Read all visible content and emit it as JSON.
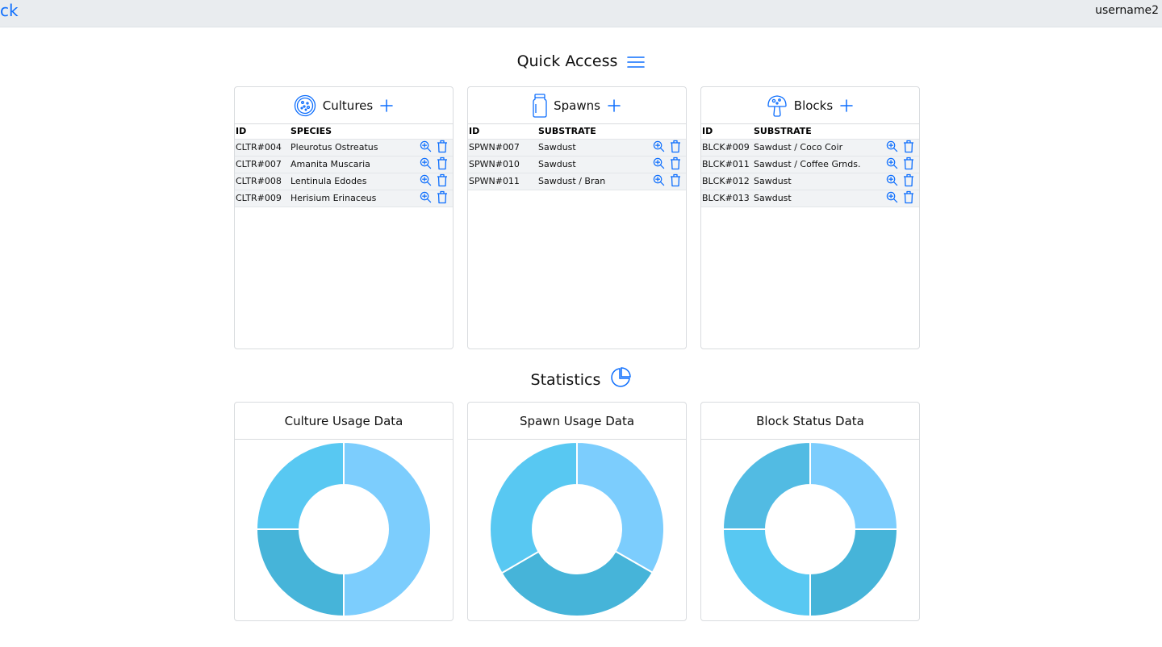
{
  "header": {
    "brand": "ck",
    "username": "username2"
  },
  "quick_access": {
    "title": "Quick Access",
    "icon": "hamburger-icon",
    "cards": [
      {
        "title": "Cultures",
        "icon": "petri-dish-icon",
        "columns": [
          "ID",
          "SPECIES"
        ],
        "rows": [
          [
            "CLTR#004",
            "Pleurotus Ostreatus"
          ],
          [
            "CLTR#007",
            "Amanita Muscaria"
          ],
          [
            "CLTR#008",
            "Lentinula Edodes"
          ],
          [
            "CLTR#009",
            "Herisium Erinaceus"
          ]
        ]
      },
      {
        "title": "Spawns",
        "icon": "jar-icon",
        "columns": [
          "ID",
          "SUBSTRATE"
        ],
        "rows": [
          [
            "SPWN#007",
            "Sawdust"
          ],
          [
            "SPWN#010",
            "Sawdust"
          ],
          [
            "SPWN#011",
            "Sawdust / Bran"
          ]
        ]
      },
      {
        "title": "Blocks",
        "icon": "mushroom-icon",
        "columns": [
          "ID",
          "SUBSTRATE"
        ],
        "rows": [
          [
            "BLCK#009",
            "Sawdust / Coco Coir"
          ],
          [
            "BLCK#011",
            "Sawdust / Coffee Grnds."
          ],
          [
            "BLCK#012",
            "Sawdust"
          ],
          [
            "BLCK#013",
            "Sawdust"
          ]
        ]
      }
    ]
  },
  "statistics": {
    "title": "Statistics",
    "icon": "pie-chart-icon",
    "cards": [
      {
        "title": "Culture Usage Data"
      },
      {
        "title": "Spawn Usage Data"
      },
      {
        "title": "Block Status Data"
      }
    ]
  },
  "colors": {
    "accent": "#0d6efd",
    "donut_light": "#7ccdfd",
    "donut_mid": "#58c8f2",
    "donut_dark": "#46b4d9"
  },
  "chart_data": [
    {
      "type": "pie",
      "title": "Culture Usage Data",
      "values": [
        50,
        25,
        25
      ],
      "colors": [
        "#7ccdfd",
        "#46b4d9",
        "#58c8f2"
      ]
    },
    {
      "type": "pie",
      "title": "Spawn Usage Data",
      "values": [
        33.3,
        33.3,
        33.4
      ],
      "colors": [
        "#7ccdfd",
        "#46b4d9",
        "#58c8f2"
      ]
    },
    {
      "type": "pie",
      "title": "Block Status Data",
      "values": [
        25,
        25,
        25,
        25
      ],
      "colors": [
        "#7ccdfd",
        "#46b4d9",
        "#58c8f2",
        "#52bbe3"
      ]
    }
  ]
}
